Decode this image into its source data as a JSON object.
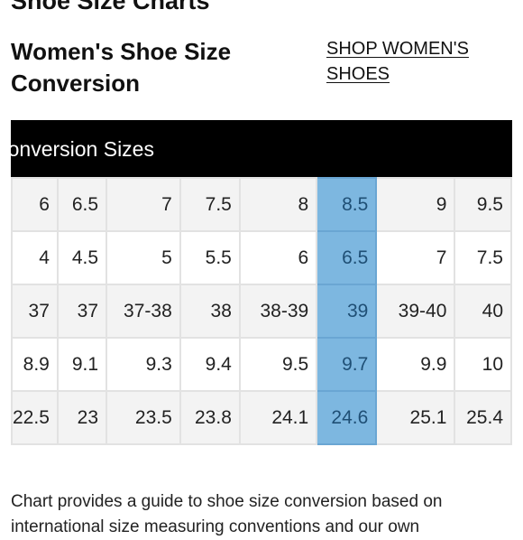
{
  "page_heading": "Shoe Size Charts",
  "section_title": "Women's Shoe Size Conversion",
  "shop_link": "SHOP WOMEN'S SHOES",
  "table": {
    "header": "Conversion Sizes",
    "highlight_column": 6,
    "rows": [
      [
        "6",
        "6.5",
        "7",
        "7.5",
        "8",
        "8.5",
        "9",
        "9.5"
      ],
      [
        "4",
        "4.5",
        "5",
        "5.5",
        "6",
        "6.5",
        "7",
        "7.5"
      ],
      [
        "37",
        "37",
        "37-38",
        "38",
        "38-39",
        "39",
        "39-40",
        "40"
      ],
      [
        "8.9",
        "9.1",
        "9.3",
        "9.4",
        "9.5",
        "9.7",
        "9.9",
        "10"
      ],
      [
        "22.5",
        "23",
        "23.5",
        "23.8",
        "24.1",
        "24.6",
        "25.1",
        "25.4"
      ]
    ]
  },
  "footnote": "Chart provides a guide to shoe size conversion based on international size measuring conventions and our own"
}
